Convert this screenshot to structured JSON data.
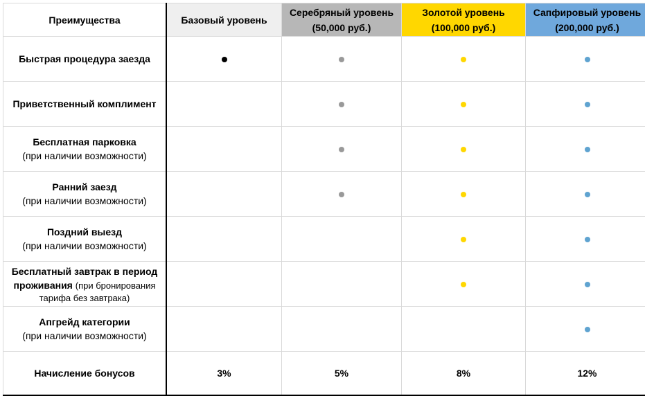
{
  "colors": {
    "basic": "#000000",
    "silver": "#999999",
    "gold": "#ffd700",
    "sapphire": "#5fa3d0",
    "header_basic_bg": "#efefef",
    "header_silver_bg": "#b7b7b7",
    "header_gold_bg": "#ffd700",
    "header_sapphire_bg": "#6fa8dc"
  },
  "header": {
    "benefits": "Преимущества",
    "basic": "Базовый уровень",
    "silver_name": "Серебряный уровень",
    "silver_price": "(50,000 руб.)",
    "gold_name": "Золотой уровень",
    "gold_price": "(100,000 руб.)",
    "sapphire_name": "Сапфировый уровень",
    "sapphire_price": "(200,000 руб.)"
  },
  "rows": [
    {
      "title": "Быстрая процедура заезда",
      "note": "",
      "basic": true,
      "silver": true,
      "gold": true,
      "sapphire": true
    },
    {
      "title": "Приветственный комплимент",
      "note": "",
      "basic": false,
      "silver": true,
      "gold": true,
      "sapphire": true
    },
    {
      "title": "Бесплатная парковка",
      "note": "(при наличии возможности)",
      "basic": false,
      "silver": true,
      "gold": true,
      "sapphire": true
    },
    {
      "title": "Ранний заезд",
      "note": "(при наличии возможности)",
      "basic": false,
      "silver": true,
      "gold": true,
      "sapphire": true
    },
    {
      "title": "Поздний выезд",
      "note": "(при наличии возможности)",
      "basic": false,
      "silver": false,
      "gold": true,
      "sapphire": true
    },
    {
      "title_line1": "Бесплатный завтрак в период",
      "title_line2": "проживания",
      "note_inline": "(при бронирования",
      "note_line3": "тарифа без завтрака)",
      "basic": false,
      "silver": false,
      "gold": true,
      "sapphire": true
    },
    {
      "title": "Апгрейд категории",
      "note": "(при наличии возможности)",
      "basic": false,
      "silver": false,
      "gold": false,
      "sapphire": true
    }
  ],
  "bonus": {
    "title": "Начисление бонусов",
    "basic": "3%",
    "silver": "5%",
    "gold": "8%",
    "sapphire": "12%"
  }
}
